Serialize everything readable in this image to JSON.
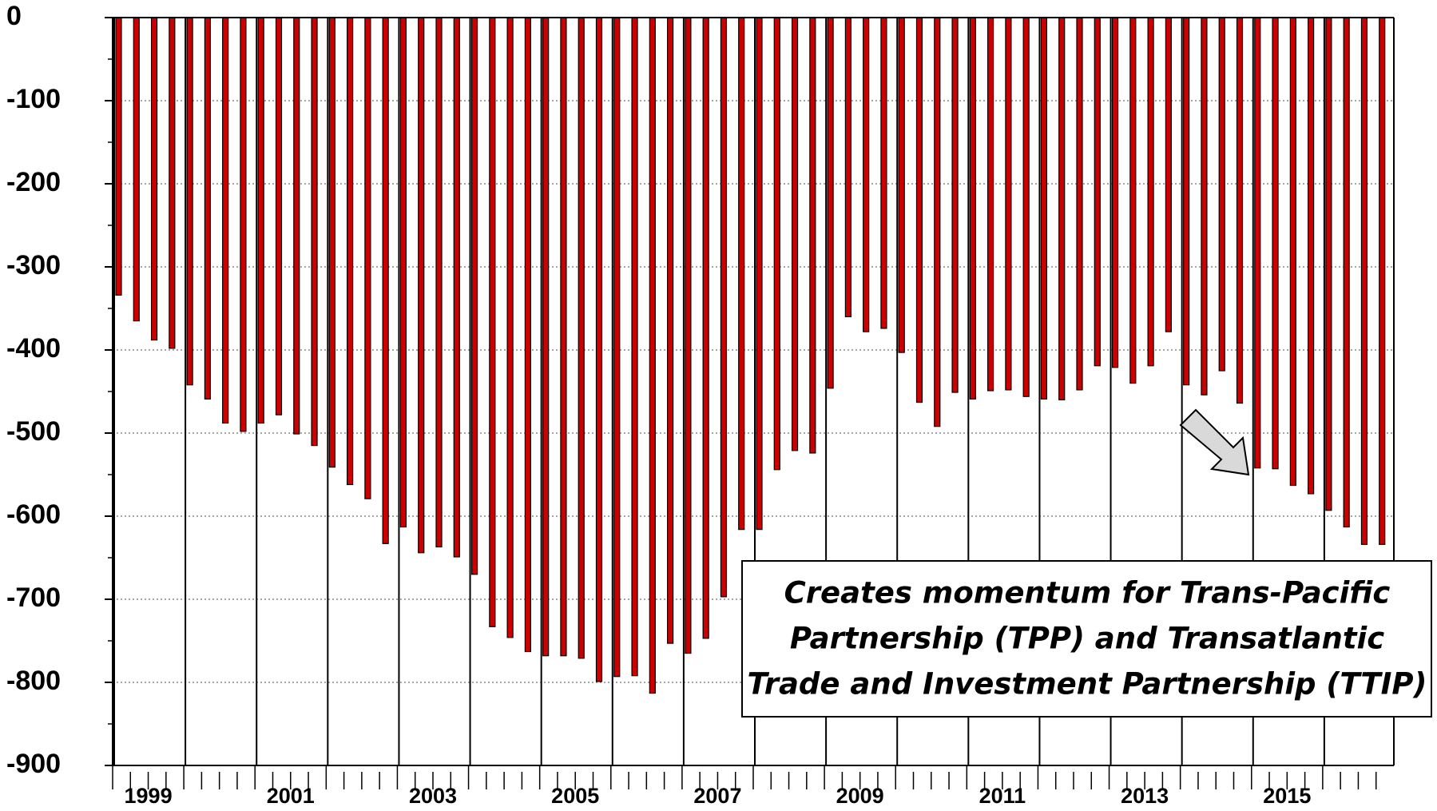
{
  "chart_data": {
    "type": "bar",
    "year_labels": [
      "1999",
      null,
      "2001",
      null,
      "2003",
      null,
      "2005",
      null,
      "2007",
      null,
      "2009",
      null,
      "2011",
      null,
      "2013",
      null,
      "2015",
      null
    ],
    "values": [
      -334,
      -365,
      -388,
      -398,
      -442,
      -459,
      -488,
      -498,
      -488,
      -478,
      -501,
      -515,
      -541,
      -562,
      -579,
      -633,
      -613,
      -644,
      -637,
      -649,
      -670,
      -733,
      -746,
      -763,
      -768,
      -768,
      -771,
      -799,
      -793,
      -792,
      -813,
      -753,
      -765,
      -747,
      -697,
      -616,
      -616,
      -544,
      -521,
      -524,
      -446,
      -360,
      -378,
      -374,
      -403,
      -463,
      -492,
      -451,
      -459,
      -449,
      -448,
      -456,
      -459,
      -460,
      -448,
      -419,
      -421,
      -440,
      -419,
      -378,
      -442,
      -454,
      -425,
      -464,
      -542,
      -543,
      -563,
      -573,
      -593,
      -613,
      -634,
      -634
    ],
    "color": "#cc0000",
    "ylim": [
      -900,
      0
    ],
    "yticks": [
      0,
      -100,
      -200,
      -300,
      -400,
      -500,
      -600,
      -700,
      -800,
      -900
    ],
    "grid": true,
    "annotation": [
      "Creates momentum for Trans-Pacific",
      "Partnership (TPP) and Transatlantic",
      "Trade and Investment Partnership (TTIP)"
    ]
  }
}
